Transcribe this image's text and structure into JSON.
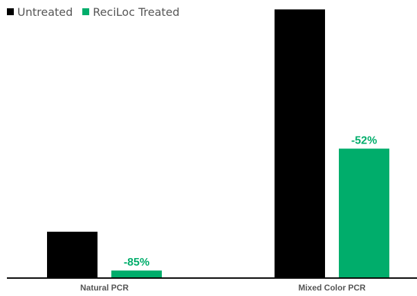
{
  "chart_data": {
    "type": "bar",
    "title": "",
    "xlabel": "",
    "ylabel": "",
    "categories": [
      "Natural PCR",
      "Mixed Color PCR"
    ],
    "series": [
      {
        "name": "Untreated",
        "color": "#000000",
        "values": [
          100,
          587
        ]
      },
      {
        "name": "ReciLoc Treated",
        "color": "#00ad6b",
        "values": [
          15,
          282
        ]
      }
    ],
    "data_labels": [
      {
        "category": "Natural PCR",
        "series": "ReciLoc Treated",
        "text": "-85%"
      },
      {
        "category": "Mixed Color PCR",
        "series": "ReciLoc Treated",
        "text": "-52%"
      }
    ],
    "ylim": [
      0,
      600
    ],
    "y_axis_visible": false,
    "grid": false,
    "legend_position": "top-left"
  }
}
